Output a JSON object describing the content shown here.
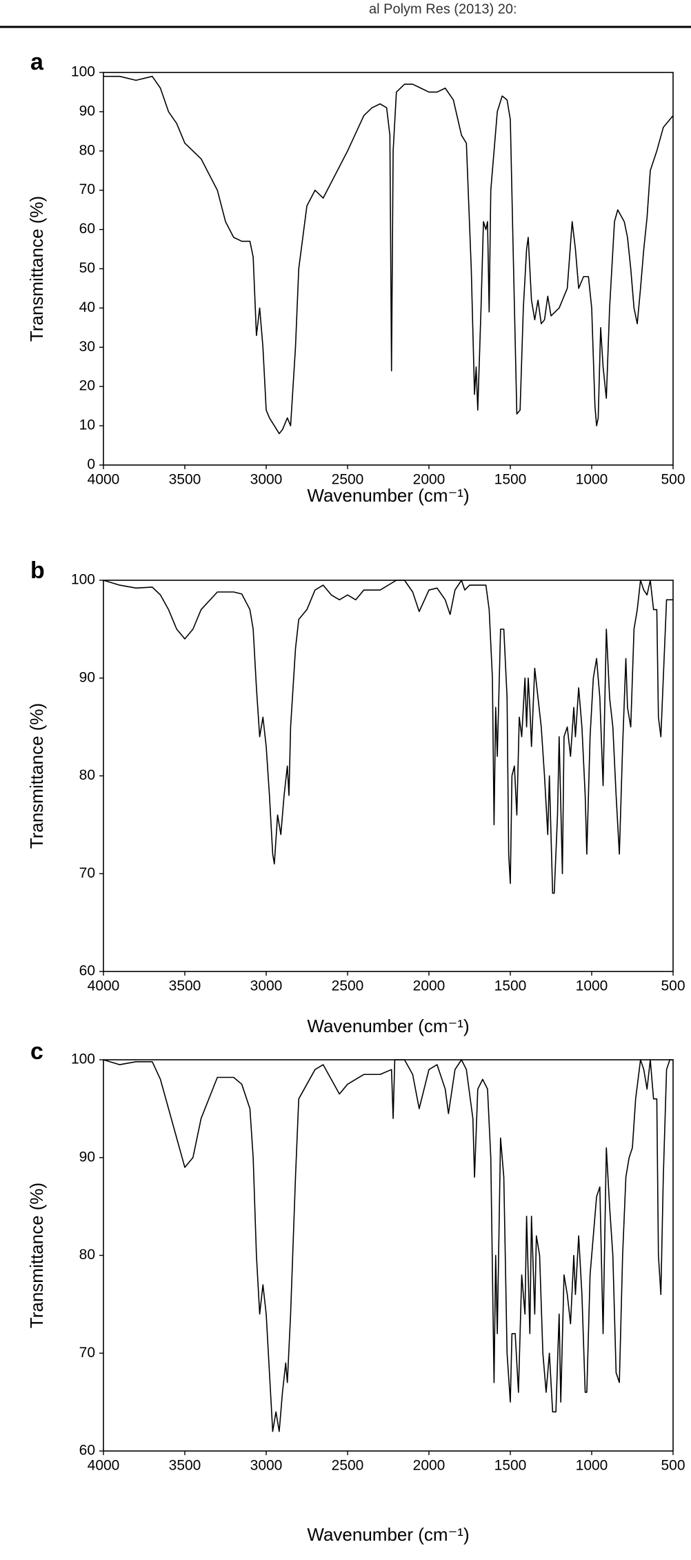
{
  "header": {
    "text": "al Polym Res (2013) 20:"
  },
  "chart_data": [
    {
      "type": "line",
      "panel": "a",
      "xlabel": "Wavenumber (cm⁻¹)",
      "ylabel": "Transmittance (%)",
      "xlim": [
        4000,
        500
      ],
      "xticks": [
        4000,
        3500,
        3000,
        2500,
        2000,
        1500,
        1000,
        500
      ],
      "ylim": [
        0,
        100
      ],
      "yticks": [
        0,
        10,
        20,
        30,
        40,
        50,
        60,
        70,
        80,
        90,
        100
      ],
      "x": [
        4000,
        3900,
        3800,
        3700,
        3650,
        3600,
        3550,
        3500,
        3400,
        3300,
        3250,
        3200,
        3150,
        3100,
        3080,
        3060,
        3040,
        3020,
        3000,
        2980,
        2950,
        2920,
        2900,
        2870,
        2850,
        2820,
        2800,
        2750,
        2700,
        2650,
        2600,
        2500,
        2400,
        2350,
        2300,
        2260,
        2240,
        2230,
        2220,
        2200,
        2150,
        2100,
        2050,
        2000,
        1950,
        1900,
        1850,
        1800,
        1770,
        1740,
        1720,
        1710,
        1700,
        1680,
        1665,
        1650,
        1640,
        1630,
        1620,
        1580,
        1550,
        1520,
        1500,
        1480,
        1460,
        1440,
        1420,
        1400,
        1390,
        1370,
        1350,
        1330,
        1310,
        1290,
        1270,
        1250,
        1200,
        1150,
        1120,
        1100,
        1080,
        1050,
        1020,
        1000,
        980,
        970,
        960,
        945,
        930,
        910,
        890,
        860,
        840,
        800,
        780,
        760,
        740,
        720,
        700,
        680,
        660,
        640,
        600,
        560,
        520,
        500
      ],
      "series": [
        {
          "color": "#000000",
          "values": [
            99,
            99,
            98,
            99,
            96,
            90,
            87,
            82,
            78,
            70,
            62,
            58,
            57,
            57,
            53,
            33,
            40,
            30,
            14,
            12,
            10,
            8,
            9,
            12,
            10,
            30,
            50,
            66,
            70,
            68,
            72,
            80,
            89,
            91,
            92,
            91,
            84,
            24,
            80,
            95,
            97,
            97,
            96,
            95,
            95,
            96,
            93,
            84,
            82,
            50,
            18,
            25,
            14,
            40,
            62,
            60,
            62,
            39,
            70,
            90,
            94,
            93,
            88,
            50,
            13,
            14,
            40,
            55,
            58,
            42,
            37,
            42,
            36,
            37,
            43,
            38,
            40,
            45,
            62,
            55,
            45,
            48,
            48,
            40,
            15,
            10,
            12,
            35,
            25,
            17,
            40,
            62,
            65,
            62,
            58,
            50,
            40,
            36,
            45,
            55,
            63,
            75,
            80,
            86,
            88,
            89
          ]
        }
      ]
    },
    {
      "type": "line",
      "panel": "b",
      "xlabel": "Wavenumber (cm⁻¹)",
      "ylabel": "Transmittance (%)",
      "xlim": [
        4000,
        500
      ],
      "xticks": [
        4000,
        3500,
        3000,
        2500,
        2000,
        1500,
        1000,
        500
      ],
      "ylim": [
        60,
        100
      ],
      "yticks": [
        60,
        70,
        80,
        90,
        100
      ],
      "x": [
        4000,
        3900,
        3800,
        3700,
        3650,
        3600,
        3550,
        3500,
        3450,
        3400,
        3300,
        3200,
        3150,
        3100,
        3080,
        3060,
        3040,
        3020,
        3000,
        2980,
        2960,
        2950,
        2930,
        2910,
        2890,
        2870,
        2860,
        2850,
        2820,
        2800,
        2750,
        2700,
        2650,
        2600,
        2550,
        2500,
        2450,
        2400,
        2300,
        2200,
        2150,
        2100,
        2060,
        2000,
        1950,
        1900,
        1870,
        1840,
        1800,
        1780,
        1750,
        1700,
        1650,
        1630,
        1610,
        1600,
        1590,
        1580,
        1560,
        1540,
        1520,
        1510,
        1500,
        1490,
        1475,
        1460,
        1445,
        1430,
        1410,
        1400,
        1390,
        1380,
        1370,
        1350,
        1330,
        1310,
        1290,
        1270,
        1260,
        1240,
        1230,
        1210,
        1200,
        1180,
        1170,
        1150,
        1130,
        1110,
        1100,
        1080,
        1060,
        1040,
        1030,
        1010,
        990,
        970,
        950,
        930,
        910,
        890,
        870,
        850,
        830,
        810,
        790,
        780,
        760,
        740,
        720,
        700,
        680,
        660,
        640,
        620,
        600,
        590,
        575,
        560,
        540,
        500
      ],
      "series": [
        {
          "color": "#000000",
          "values": [
            100,
            99.5,
            99.2,
            99.3,
            98.5,
            97,
            95,
            94,
            95,
            97,
            98.8,
            98.8,
            98.6,
            97,
            95,
            89,
            84,
            86,
            83,
            78,
            72,
            71,
            76,
            74,
            78,
            81,
            78,
            85,
            93,
            96,
            97,
            99,
            99.5,
            98.5,
            98,
            98.5,
            98,
            99,
            99,
            100,
            100,
            98.8,
            96.8,
            99,
            99.2,
            98,
            96.5,
            99,
            100,
            99,
            99.5,
            99.5,
            99.5,
            97,
            90,
            75,
            87,
            82,
            95,
            95,
            88,
            72,
            69,
            80,
            81,
            76,
            86,
            84,
            90,
            85,
            90,
            87,
            83,
            91,
            88,
            85,
            80,
            74,
            80,
            68,
            68,
            76,
            84,
            70,
            84,
            85,
            82,
            87,
            84,
            89,
            85,
            78,
            72,
            84,
            90,
            92,
            88,
            79,
            95,
            88,
            85,
            78,
            72,
            83,
            92,
            87,
            85,
            95,
            97,
            100,
            99,
            98.5,
            100,
            97,
            97,
            86,
            84,
            90,
            98,
            98
          ]
        }
      ]
    },
    {
      "type": "line",
      "panel": "c",
      "xlabel": "Wavenumber (cm⁻¹)",
      "ylabel": "Transmittance (%)",
      "xlim": [
        4000,
        500
      ],
      "xticks": [
        4000,
        3500,
        3000,
        2500,
        2000,
        1500,
        1000,
        500
      ],
      "ylim": [
        60,
        100
      ],
      "yticks": [
        60,
        70,
        80,
        90,
        100
      ],
      "x": [
        4000,
        3900,
        3800,
        3700,
        3650,
        3600,
        3550,
        3500,
        3450,
        3400,
        3300,
        3200,
        3150,
        3100,
        3080,
        3060,
        3040,
        3020,
        3000,
        2980,
        2960,
        2940,
        2920,
        2900,
        2880,
        2870,
        2850,
        2820,
        2800,
        2750,
        2700,
        2650,
        2600,
        2550,
        2500,
        2450,
        2400,
        2300,
        2230,
        2220,
        2210,
        2150,
        2100,
        2060,
        2000,
        1950,
        1900,
        1880,
        1840,
        1800,
        1770,
        1730,
        1720,
        1700,
        1670,
        1640,
        1620,
        1600,
        1590,
        1580,
        1560,
        1540,
        1520,
        1500,
        1490,
        1470,
        1450,
        1430,
        1410,
        1400,
        1380,
        1370,
        1350,
        1340,
        1320,
        1300,
        1280,
        1260,
        1240,
        1220,
        1200,
        1190,
        1170,
        1150,
        1130,
        1110,
        1100,
        1080,
        1060,
        1040,
        1030,
        1010,
        990,
        970,
        950,
        930,
        910,
        890,
        870,
        850,
        830,
        810,
        790,
        770,
        750,
        730,
        700,
        680,
        660,
        640,
        620,
        600,
        590,
        575,
        560,
        540,
        520,
        500
      ],
      "series": [
        {
          "color": "#000000",
          "values": [
            100,
            99.5,
            99.8,
            99.8,
            98,
            95,
            92,
            89,
            90,
            94,
            98.2,
            98.2,
            97.5,
            95,
            90,
            80,
            74,
            77,
            74,
            68,
            62,
            64,
            62,
            66,
            69,
            67,
            74,
            88,
            96,
            97.5,
            99,
            99.5,
            98,
            96.5,
            97.5,
            98,
            98.5,
            98.5,
            99,
            94,
            100,
            100,
            98.5,
            95,
            99,
            99.5,
            97,
            94.5,
            99,
            100,
            99,
            94,
            88,
            97,
            98,
            97,
            90,
            67,
            80,
            72,
            92,
            88,
            70,
            65,
            72,
            72,
            66,
            78,
            74,
            84,
            72,
            84,
            74,
            82,
            80,
            70,
            66,
            70,
            64,
            64,
            74,
            65,
            78,
            76,
            73,
            80,
            76,
            82,
            76,
            66,
            66,
            78,
            82,
            86,
            87,
            72,
            91,
            85,
            80,
            68,
            67,
            80,
            88,
            90,
            91,
            96,
            100,
            99,
            97,
            100,
            96,
            96,
            80,
            76,
            88,
            99,
            100,
            100
          ]
        }
      ]
    }
  ]
}
